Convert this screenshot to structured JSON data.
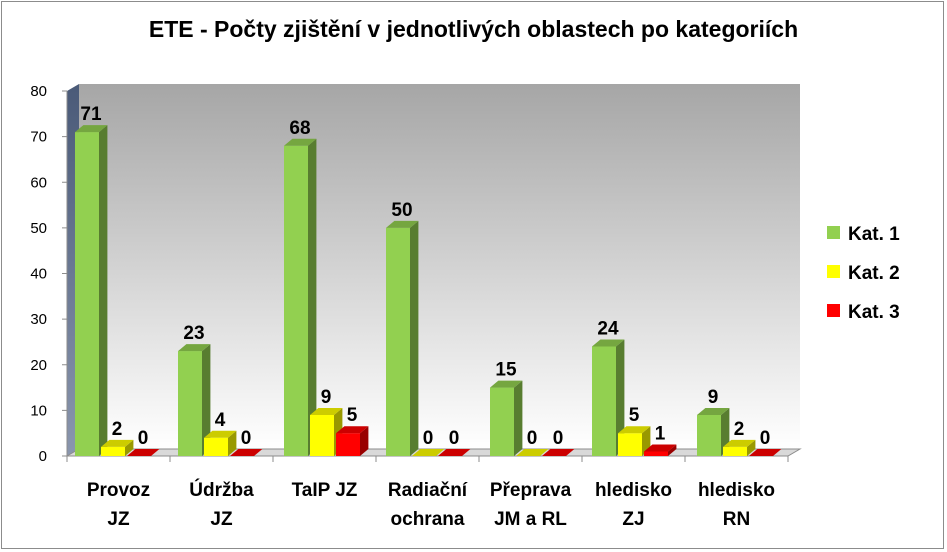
{
  "chart_data": {
    "type": "bar",
    "title": "ETE - Počty zjištění v jednotlivých oblastech po kategoriích",
    "categories": [
      [
        "Provoz",
        "JZ"
      ],
      [
        "Údržba",
        "JZ"
      ],
      [
        "TaIP JZ"
      ],
      [
        "Radiační",
        "ochrana"
      ],
      [
        "Přeprava",
        "JM a RL"
      ],
      [
        "hledisko",
        "ZJ"
      ],
      [
        "hledisko",
        "RN"
      ]
    ],
    "series": [
      {
        "name": "Kat. 1",
        "color": "#92d050",
        "values": [
          71,
          23,
          68,
          50,
          15,
          24,
          9
        ]
      },
      {
        "name": "Kat. 2",
        "color": "#ffff00",
        "values": [
          2,
          4,
          9,
          0,
          0,
          5,
          2
        ]
      },
      {
        "name": "Kat. 3",
        "color": "#ff0000",
        "values": [
          0,
          0,
          5,
          0,
          0,
          1,
          0
        ]
      }
    ],
    "ylim": [
      0,
      80
    ],
    "yticks": [
      0,
      10,
      20,
      30,
      40,
      50,
      60,
      70,
      80
    ],
    "grid": false,
    "legend": "right"
  }
}
